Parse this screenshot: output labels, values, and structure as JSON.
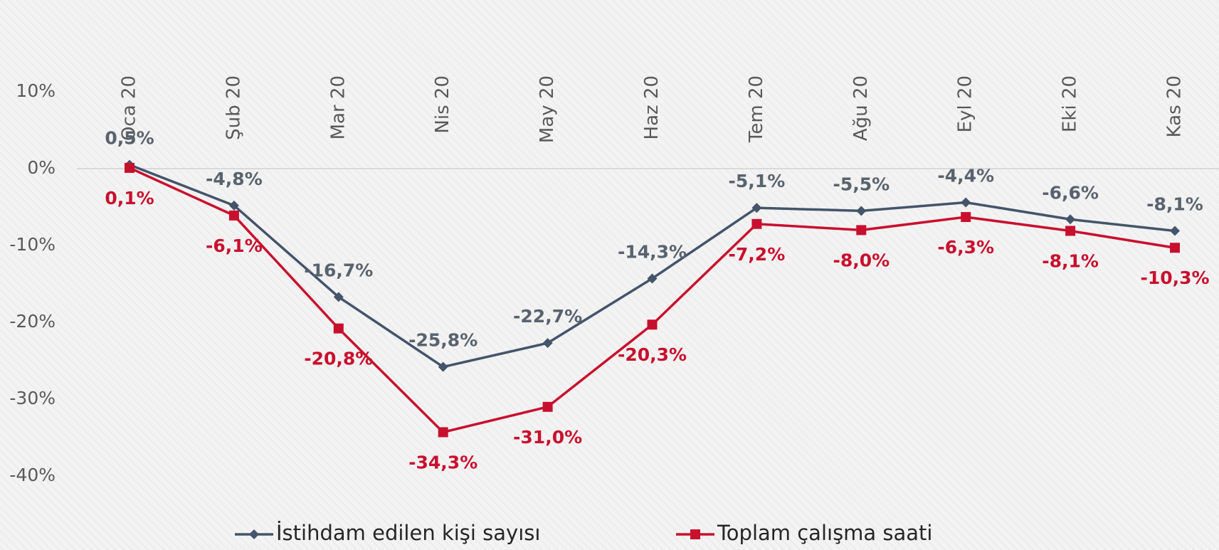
{
  "chart_data": {
    "type": "line",
    "categories": [
      "Oca 20",
      "Şub 20",
      "Mar 20",
      "Nis 20",
      "May 20",
      "Haz 20",
      "Tem 20",
      "Ağu 20",
      "Eyl 20",
      "Eki 20",
      "Kas 20"
    ],
    "series": [
      {
        "name": "İstihdam edilen kişi sayısı",
        "color": "#44546a",
        "marker": "diamond",
        "values": [
          0.5,
          -4.8,
          -16.7,
          -25.8,
          -22.7,
          -14.3,
          -5.1,
          -5.5,
          -4.4,
          -6.6,
          -8.1
        ],
        "value_labels": [
          "0,5%",
          "-4,8%",
          "-16,7%",
          "-25,8%",
          "-22,7%",
          "-14,3%",
          "-5,1%",
          "-5,5%",
          "-4,4%",
          "-6,6%",
          "-8,1%"
        ]
      },
      {
        "name": "Toplam çalışma saati",
        "color": "#c8102e",
        "marker": "square",
        "values": [
          0.1,
          -6.1,
          -20.8,
          -34.3,
          -31.0,
          -20.3,
          -7.2,
          -8.0,
          -6.3,
          -8.1,
          -10.3
        ],
        "value_labels": [
          "0,1%",
          "-6,1%",
          "-20,8%",
          "-34,3%",
          "-31,0%",
          "-20,3%",
          "-7,2%",
          "-8,0%",
          "-6,3%",
          "-8,1%",
          "-10,3%"
        ]
      }
    ],
    "ylim": [
      -40,
      10
    ],
    "yticks": [
      {
        "value": 10,
        "label": "10%"
      },
      {
        "value": 0,
        "label": "0%"
      },
      {
        "value": -10,
        "label": "-10%"
      },
      {
        "value": -20,
        "label": "-20%"
      },
      {
        "value": -30,
        "label": "-30%"
      },
      {
        "value": -40,
        "label": "-40%"
      }
    ],
    "legend": "bottom"
  }
}
